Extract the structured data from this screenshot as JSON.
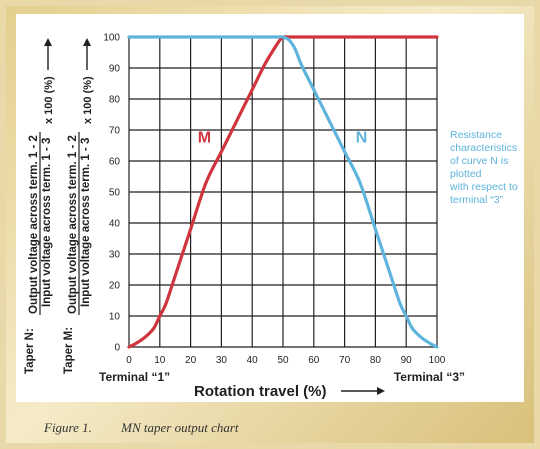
{
  "chart_data": {
    "type": "line",
    "xlim": [
      0,
      100
    ],
    "ylim": [
      0,
      100
    ],
    "xticks": [
      0,
      10,
      20,
      30,
      40,
      50,
      60,
      70,
      80,
      90,
      100
    ],
    "yticks": [
      0,
      10,
      20,
      30,
      40,
      50,
      60,
      70,
      80,
      90,
      100
    ],
    "grid": true,
    "xlabel": "Rotation travel (%)",
    "x_left_label": "Terminal “1”",
    "x_right_label": "Terminal “3”",
    "ylabel_n": {
      "prefix": "Taper N:",
      "numerator": "Output voltage across term. 1 - 2",
      "denominator": "Input voltage across term. 1 - 3",
      "suffix": "x 100 (%)"
    },
    "ylabel_m": {
      "prefix": "Taper M:",
      "numerator": "Output voltage across term. 1 - 2",
      "denominator": "Input voltage across term. 1 - 3",
      "suffix": "x 100 (%)"
    },
    "series": [
      {
        "name": "M",
        "color": "#d0343c",
        "x": [
          0,
          2,
          5,
          8,
          10,
          12,
          15,
          20,
          25,
          30,
          35,
          40,
          44,
          47,
          49,
          50,
          52,
          55,
          60,
          70,
          80,
          90,
          100
        ],
        "y": [
          0,
          1,
          3,
          6,
          10,
          14,
          23,
          38,
          53,
          63,
          73,
          83,
          91,
          96,
          99,
          100,
          100,
          100,
          100,
          100,
          100,
          100,
          100
        ]
      },
      {
        "name": "N",
        "color": "#5eb4dc",
        "x": [
          0,
          10,
          20,
          30,
          40,
          48,
          50,
          52,
          54,
          56,
          60,
          65,
          70,
          75,
          80,
          85,
          88,
          90,
          92,
          95,
          98,
          100
        ],
        "y": [
          100,
          100,
          100,
          100,
          100,
          100,
          100,
          99,
          96,
          91,
          83,
          73,
          63,
          53,
          38,
          23,
          14,
          10,
          6,
          3,
          1,
          0
        ]
      }
    ],
    "annotation": [
      "Resistance",
      "characteristics",
      "of curve N is",
      "plotted",
      "with respect to",
      "terminal “3”"
    ]
  },
  "caption": {
    "figure": "Figure 1.",
    "title": "MN taper output chart"
  }
}
